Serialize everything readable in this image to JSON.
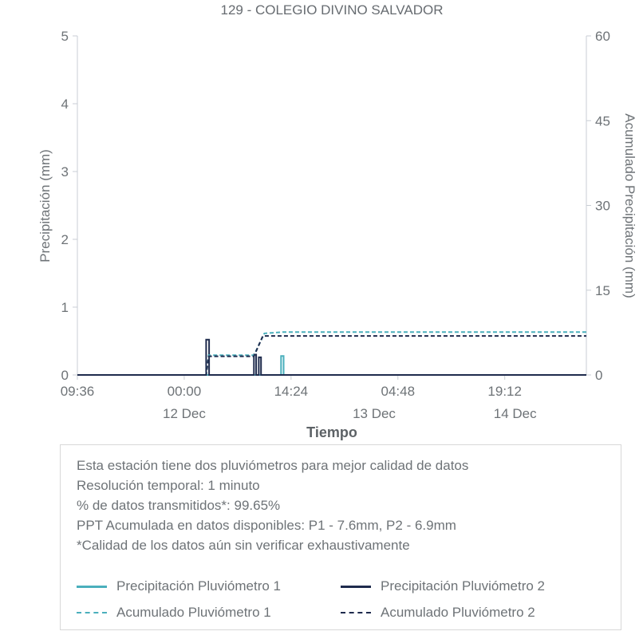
{
  "chart_data": {
    "type": "line",
    "title": "129 - COLEGIO DIVINO SALVADOR",
    "xlabel": "Tiempo",
    "ylabel_left": "Precipitación (mm)",
    "ylabel_right": "Acumulado Precipitación (mm)",
    "x_unit": "hours since start of axis (11 Dec 09:36)",
    "x_range": [
      0,
      68.6
    ],
    "y_left_range": [
      0,
      5
    ],
    "y_right_range": [
      0,
      60
    ],
    "y_left_ticks": [
      0,
      1,
      2,
      3,
      4,
      5
    ],
    "y_right_ticks": [
      0,
      15,
      30,
      45,
      60
    ],
    "x_ticks": [
      {
        "t": 0,
        "label": "09:36"
      },
      {
        "t": 14.4,
        "label": "00:00"
      },
      {
        "t": 28.8,
        "label": "14:24"
      },
      {
        "t": 43.2,
        "label": "04:48"
      },
      {
        "t": 57.6,
        "label": "19:12"
      }
    ],
    "date_ticks": [
      {
        "t": 14.4,
        "label": "12 Dec"
      },
      {
        "t": 40.0,
        "label": "13 Dec"
      },
      {
        "t": 59.0,
        "label": "14 Dec"
      }
    ],
    "grid": false,
    "legend_position": "below in info box",
    "colors": {
      "p1": "#4aafbc",
      "p2": "#1f2b4d",
      "axis": "#c9ced4",
      "text": "#6e7377"
    },
    "series": [
      {
        "name": "Precipitación Pluviómetro 1",
        "axis": "left",
        "color_key": "p1",
        "dash": false,
        "width": 2,
        "points": [
          [
            0,
            0
          ],
          [
            27.45,
            0
          ],
          [
            27.45,
            0.28
          ],
          [
            27.8,
            0.28
          ],
          [
            27.8,
            0
          ],
          [
            68.6,
            0
          ]
        ]
      },
      {
        "name": "Precipitación Pluviómetro 2",
        "axis": "left",
        "color_key": "p2",
        "dash": false,
        "width": 2,
        "points": [
          [
            0,
            0
          ],
          [
            17.35,
            0
          ],
          [
            17.35,
            0.52
          ],
          [
            17.75,
            0.52
          ],
          [
            17.75,
            0
          ],
          [
            23.8,
            0
          ],
          [
            23.8,
            0.3
          ],
          [
            24.1,
            0.3
          ],
          [
            24.1,
            0
          ],
          [
            24.45,
            0
          ],
          [
            24.45,
            0.26
          ],
          [
            24.75,
            0.26
          ],
          [
            24.75,
            0
          ],
          [
            68.6,
            0
          ]
        ]
      },
      {
        "name": "Acumulado Pluviómetro 1",
        "axis": "right",
        "color_key": "p1",
        "dash": true,
        "width": 2,
        "points": [
          [
            0,
            0
          ],
          [
            17.35,
            0
          ],
          [
            17.7,
            3.5
          ],
          [
            23.8,
            3.5
          ],
          [
            25.2,
            7.35
          ],
          [
            27.8,
            7.6
          ],
          [
            68.6,
            7.6
          ]
        ]
      },
      {
        "name": "Acumulado Pluviómetro 2",
        "axis": "right",
        "color_key": "p2",
        "dash": true,
        "width": 2,
        "points": [
          [
            0,
            0
          ],
          [
            17.35,
            0
          ],
          [
            17.7,
            3.3
          ],
          [
            23.8,
            3.3
          ],
          [
            25.0,
            6.9
          ],
          [
            68.6,
            6.9
          ]
        ]
      }
    ]
  },
  "info_box": {
    "lines": [
      "Esta estación tiene dos pluviómetros para mejor calidad de datos",
      "Resolución temporal: 1 minuto",
      "% de datos transmitidos*: 99.65%",
      "PPT Acumulada en datos disponibles: P1 - 7.6mm, P2 - 6.9mm",
      "*Calidad de los datos aún sin verificar exhaustivamente"
    ],
    "legend": [
      {
        "label": "Precipitación Pluviómetro 1",
        "color_key": "p1",
        "dash": false
      },
      {
        "label": "Precipitación Pluviómetro 2",
        "color_key": "p2",
        "dash": false
      },
      {
        "label": "Acumulado Pluviómetro 1",
        "color_key": "p1",
        "dash": true
      },
      {
        "label": "Acumulado Pluviómetro 2",
        "color_key": "p2",
        "dash": true
      }
    ]
  }
}
